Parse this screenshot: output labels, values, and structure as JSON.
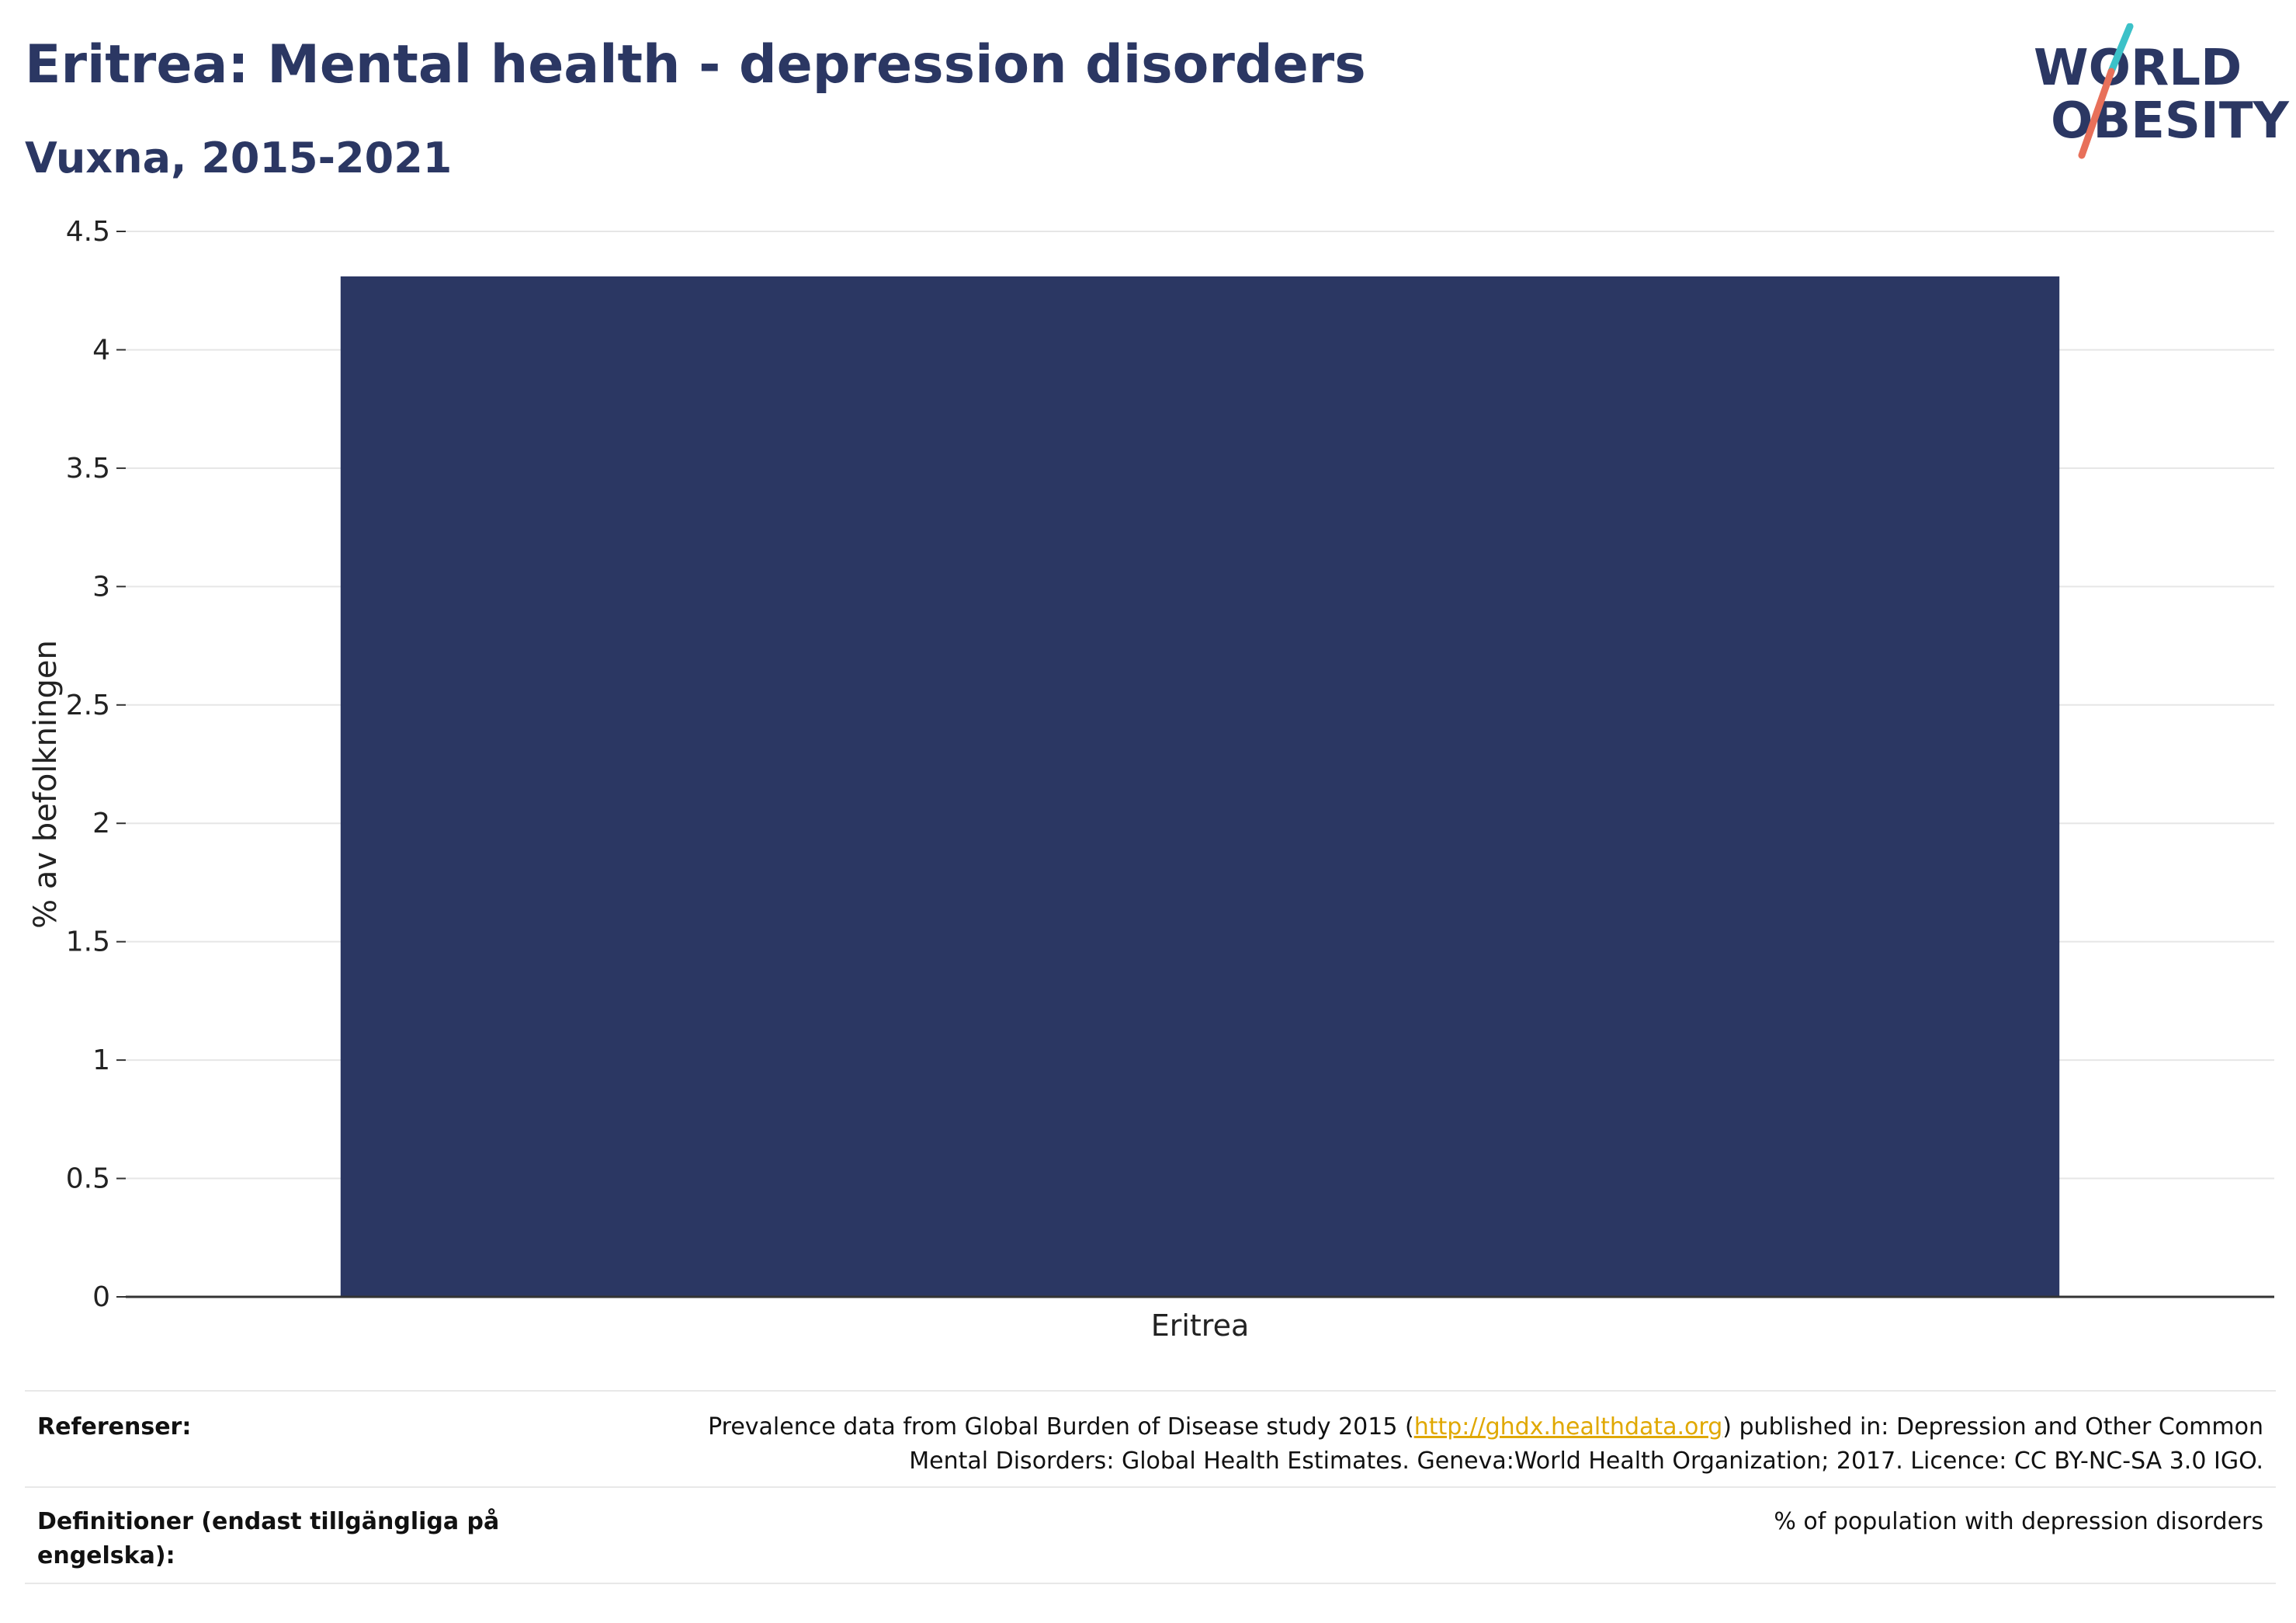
{
  "title": "Eritrea: Mental health - depression disorders",
  "subtitle": "Vuxna, 2015-2021",
  "logo": {
    "line1": "WORLD",
    "line2": "OBESITY",
    "accent_teal": "#3cc1c8",
    "accent_coral": "#e8705a"
  },
  "colors": {
    "bar": "#2b3763",
    "grid": "#e6e6e6",
    "axis": "#333333"
  },
  "chart_data": {
    "type": "bar",
    "categories": [
      "Eritrea"
    ],
    "values": [
      4.31
    ],
    "ylabel": "% av befolkningen",
    "ylim": [
      0,
      4.5
    ],
    "yticks": [
      0,
      0.5,
      1,
      1.5,
      2,
      2.5,
      3,
      3.5,
      4,
      4.5
    ],
    "ytick_labels": [
      "0",
      "0.5",
      "1",
      "1.5",
      "2",
      "2.5",
      "3",
      "3.5",
      "4",
      "4.5"
    ],
    "grid": true
  },
  "references": {
    "label": "Referenser:",
    "text_before_link": "Prevalence data from Global Burden of Disease study 2015 (",
    "link": "http://ghdx.healthdata.org",
    "text_after_link": ") published in: Depression and Other Common",
    "line2": "Mental Disorders: Global Health Estimates. Geneva:World Health Organization; 2017. Licence: CC BY-NC-SA 3.0 IGO."
  },
  "definitions": {
    "label_line1": "Definitioner (endast tillgängliga på",
    "label_line2": "engelska):",
    "value": "% of population with depression disorders"
  }
}
